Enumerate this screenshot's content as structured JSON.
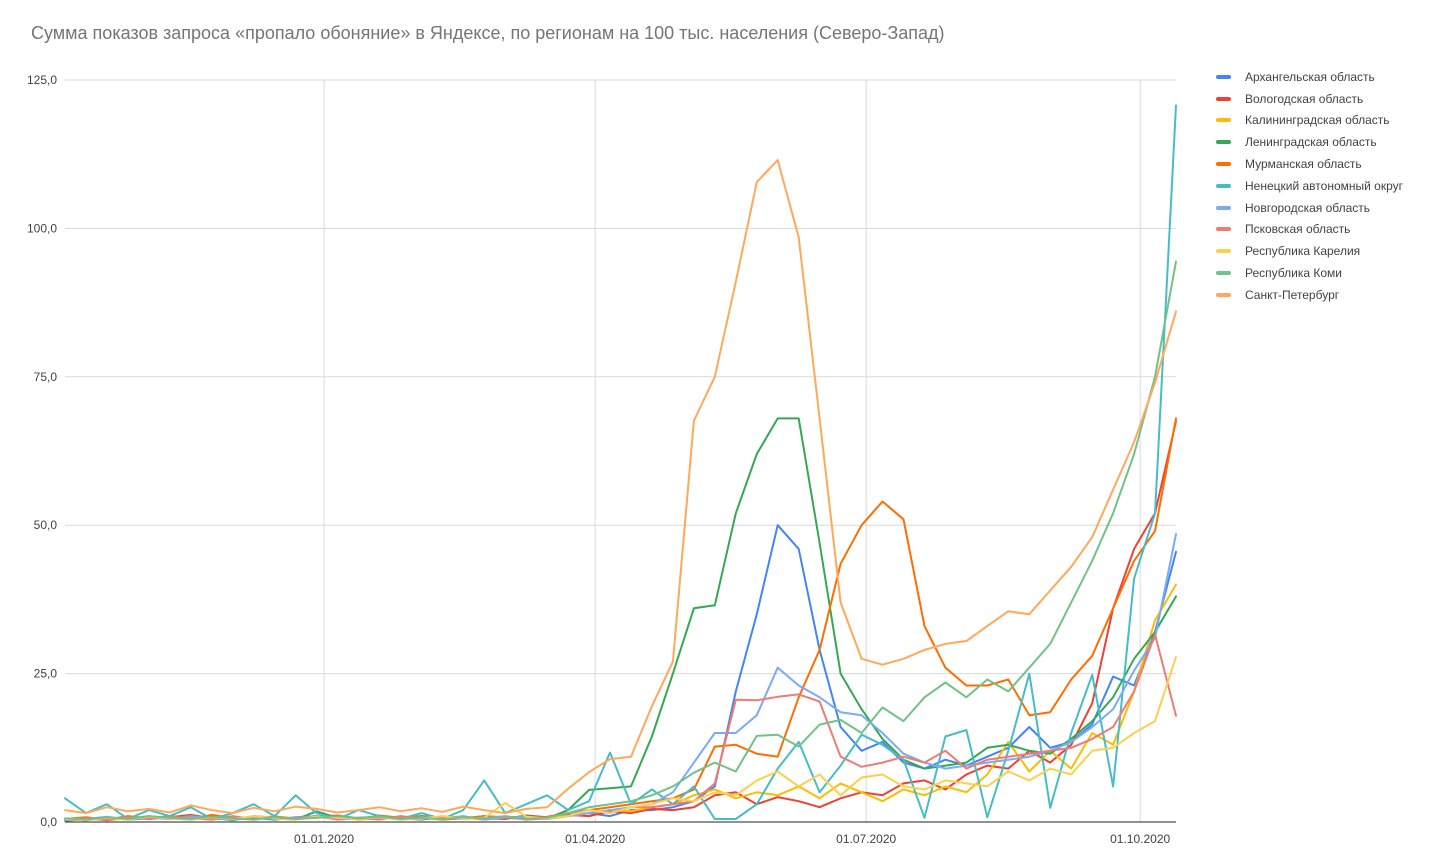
{
  "page": {
    "background": "#ffffff"
  },
  "colors": {
    "title_text": "#757575",
    "tick_label": "#424242",
    "legend_text": "#424242",
    "gridline": "#d9d9d9",
    "axis_line": "#212121",
    "background": "#ffffff"
  },
  "chart_data": {
    "type": "line",
    "title": "Сумма показов запроса «пропало обоняние» в Яндексе, по регионам на 100 тыс. населения (Северо-Запад)",
    "xlabel": "",
    "ylabel": "",
    "ylim": [
      0,
      125
    ],
    "grid": true,
    "legend_position": "right",
    "n_points": 54,
    "x_unit": "weeks, Oct 2019 – Oct 2020",
    "y_ticks": [
      {
        "value": 0,
        "label": "0,0"
      },
      {
        "value": 25,
        "label": "25,0"
      },
      {
        "value": 50,
        "label": "50,0"
      },
      {
        "value": 75,
        "label": "75,0"
      },
      {
        "value": 100,
        "label": "100,0"
      },
      {
        "value": 125,
        "label": "125,0"
      }
    ],
    "x_ticks": [
      {
        "pos_weeks": 12.36,
        "label": "01.01.2020"
      },
      {
        "pos_weeks": 25.29,
        "label": "01.04.2020"
      },
      {
        "pos_weeks": 38.22,
        "label": "01.07.2020"
      },
      {
        "pos_weeks": 51.29,
        "label": "01.10.2020"
      }
    ],
    "series": [
      {
        "name": "Архангельская область",
        "color": "#4285F4",
        "values": [
          0.5,
          0.3,
          0.8,
          0.5,
          1,
          0.6,
          0.4,
          0.9,
          0.5,
          0.7,
          0.4,
          0.8,
          1,
          0.5,
          0.7,
          0.9,
          0.6,
          0.4,
          0.8,
          0.6,
          1,
          0.7,
          0.5,
          0.8,
          1,
          1.5,
          1,
          2,
          2,
          2.5,
          3.5,
          6,
          22,
          35,
          50,
          46,
          29,
          16,
          12,
          13.5,
          10,
          9,
          10.5,
          9.5,
          11,
          12.5,
          16,
          12.5,
          13.5,
          16.5,
          24.5,
          23,
          32,
          45.5
        ]
      },
      {
        "name": "Вологодская область",
        "color": "#EA4335",
        "values": [
          0.3,
          0.6,
          0.4,
          0.9,
          0.5,
          0.8,
          1.2,
          0.6,
          0.4,
          1,
          0.7,
          0.5,
          0.9,
          1.1,
          0.6,
          0.8,
          0.5,
          1,
          0.7,
          0.9,
          0.6,
          0.5,
          1.1,
          0.8,
          1.2,
          1,
          1.8,
          1.5,
          2.2,
          2,
          2.5,
          4.5,
          5,
          3,
          4.2,
          3.5,
          2.5,
          4,
          5,
          4.5,
          6.5,
          7,
          5.5,
          8,
          9.5,
          9,
          12,
          10,
          13,
          20,
          36,
          46,
          52,
          67.5
        ]
      },
      {
        "name": "Калининградская область",
        "color": "#FBBC04",
        "values": [
          0.4,
          0.7,
          0.3,
          0.6,
          0.9,
          0.5,
          0.7,
          0.4,
          0.8,
          0.6,
          1,
          0.5,
          0.7,
          0.9,
          0.4,
          0.6,
          0.8,
          0.5,
          1,
          0.7,
          0.4,
          0.9,
          0.6,
          0.8,
          1,
          1.5,
          2,
          1.8,
          2.5,
          3,
          4.5,
          5.5,
          4,
          5,
          4.5,
          6,
          4,
          6.5,
          5,
          3.5,
          5.5,
          4.5,
          6,
          5,
          8,
          13.5,
          8.5,
          12,
          9,
          15,
          13,
          22,
          34,
          40
        ]
      },
      {
        "name": "Ленинградская область",
        "color": "#34A853",
        "values": [
          0.2,
          0.5,
          0.8,
          0.4,
          0.6,
          1,
          0.5,
          0.7,
          0.3,
          0.9,
          0.6,
          0.4,
          1.8,
          0.7,
          0.5,
          0.9,
          0.6,
          1,
          0.4,
          0.8,
          0.5,
          0.7,
          1,
          0.6,
          2,
          5.4,
          5.7,
          6,
          14.4,
          25,
          36,
          36.5,
          52,
          62,
          68,
          68,
          47,
          25,
          19,
          14,
          10.5,
          9,
          9.5,
          10,
          12.5,
          13,
          12,
          11.5,
          14,
          17,
          21,
          27.5,
          32,
          38
        ]
      },
      {
        "name": "Мурманская область",
        "color": "#FF6D01",
        "values": [
          0.5,
          0.8,
          0.4,
          1,
          0.6,
          0.9,
          0.5,
          1.2,
          0.7,
          0.4,
          0.9,
          0.6,
          1,
          0.8,
          0.5,
          1.1,
          0.7,
          0.9,
          0.4,
          0.6,
          1,
          0.8,
          0.5,
          0.9,
          1.5,
          2,
          2.5,
          3,
          3.5,
          4,
          5.5,
          12.7,
          13,
          11.5,
          11,
          21,
          29,
          43.5,
          50,
          54,
          51,
          33,
          26,
          23,
          23,
          24,
          18,
          18.5,
          24,
          28,
          36,
          44,
          49,
          68
        ]
      },
      {
        "name": "Ненецкий автономный округ",
        "color": "#46BDC6",
        "values": [
          4,
          1.5,
          3,
          0.5,
          2,
          1,
          2.5,
          0.5,
          1.5,
          3,
          1,
          4.5,
          1.5,
          0.5,
          2,
          1,
          0.5,
          1.5,
          0.5,
          2,
          7,
          1.5,
          3,
          4.5,
          2,
          3.5,
          11.7,
          3,
          5.5,
          3,
          6,
          0.5,
          0.5,
          3,
          9,
          13.5,
          5,
          9.5,
          14.7,
          13,
          10.5,
          0.7,
          14.4,
          15.5,
          0.8,
          12,
          25,
          2.4,
          15,
          24.8,
          6,
          41,
          52,
          120.7
        ]
      },
      {
        "name": "Новгородская область",
        "color": "#7BAAF7",
        "values": [
          0.3,
          0.5,
          0.9,
          0.4,
          0.7,
          0.5,
          1,
          0.6,
          0.4,
          0.8,
          0.5,
          0.7,
          1,
          0.4,
          0.6,
          0.9,
          0.5,
          0.8,
          0.6,
          1,
          0.4,
          0.7,
          0.9,
          0.5,
          1,
          1.5,
          2,
          2.5,
          3,
          5,
          10,
          15,
          15,
          18,
          26,
          23,
          21,
          18.5,
          18,
          15,
          11.5,
          10,
          9,
          9.5,
          10,
          10.5,
          11,
          12,
          13.5,
          16,
          19,
          25.5,
          31,
          48.5
        ]
      },
      {
        "name": "Псковская область",
        "color": "#F07B72",
        "values": [
          0.4,
          0.6,
          0.3,
          0.8,
          0.5,
          0.9,
          0.6,
          0.4,
          1,
          0.5,
          0.8,
          0.6,
          0.9,
          0.5,
          0.7,
          0.4,
          1,
          0.6,
          0.8,
          0.5,
          0.7,
          0.9,
          0.4,
          0.6,
          1.5,
          2,
          1.5,
          2.5,
          2.5,
          3,
          3.5,
          6.5,
          20.6,
          20.5,
          21.1,
          21.5,
          20.3,
          11,
          9.3,
          10,
          11,
          10,
          12,
          9,
          10.5,
          11,
          11.5,
          12,
          12.5,
          14,
          16,
          22,
          31.6,
          17.9
        ]
      },
      {
        "name": "Республика Карелия",
        "color": "#FCD04F",
        "values": [
          0.5,
          0.3,
          0.7,
          0.4,
          0.9,
          0.6,
          0.4,
          0.8,
          0.5,
          1,
          0.6,
          0.4,
          0.9,
          0.7,
          0.5,
          0.8,
          0.4,
          0.6,
          1,
          0.5,
          0.7,
          3.2,
          0.9,
          0.6,
          1,
          2,
          1.5,
          2.5,
          3,
          4,
          3.5,
          5,
          4.5,
          7,
          8.5,
          6,
          8,
          4.5,
          7.5,
          8,
          6,
          5.5,
          7,
          6.5,
          6,
          8.5,
          7,
          9,
          8,
          12,
          12.5,
          15,
          17,
          27.8
        ]
      },
      {
        "name": "Республика Коми",
        "color": "#71C287",
        "values": [
          0.6,
          0.4,
          0.8,
          0.5,
          1,
          0.7,
          0.5,
          0.9,
          0.6,
          0.4,
          0.8,
          0.5,
          0.7,
          1,
          0.6,
          0.9,
          0.5,
          0.7,
          0.4,
          0.8,
          0.6,
          1,
          0.5,
          0.7,
          1.5,
          2.5,
          3,
          3.5,
          4.5,
          6,
          8.3,
          10,
          8.5,
          14.5,
          14.7,
          12.7,
          16.4,
          17.2,
          15,
          19.3,
          17,
          21,
          23.5,
          21,
          24,
          22,
          26,
          30,
          37,
          44,
          52,
          62,
          75,
          94.4
        ]
      },
      {
        "name": "Санкт-Петербург",
        "color": "#FFA85C",
        "values": [
          2,
          1.5,
          2.5,
          1.8,
          2.2,
          1.6,
          2.8,
          2,
          1.5,
          2.4,
          1.8,
          2.6,
          2.2,
          1.6,
          2,
          2.5,
          1.8,
          2.3,
          1.7,
          2.6,
          2,
          1.5,
          2.2,
          2.5,
          5.6,
          8.4,
          10.6,
          11,
          19.5,
          27,
          67.6,
          75,
          91,
          107.8,
          111.5,
          98.5,
          68,
          37,
          27.5,
          26.5,
          27.5,
          29,
          30,
          30.5,
          33,
          35.5,
          35,
          39,
          43,
          48,
          56,
          64,
          74,
          86
        ]
      }
    ]
  }
}
